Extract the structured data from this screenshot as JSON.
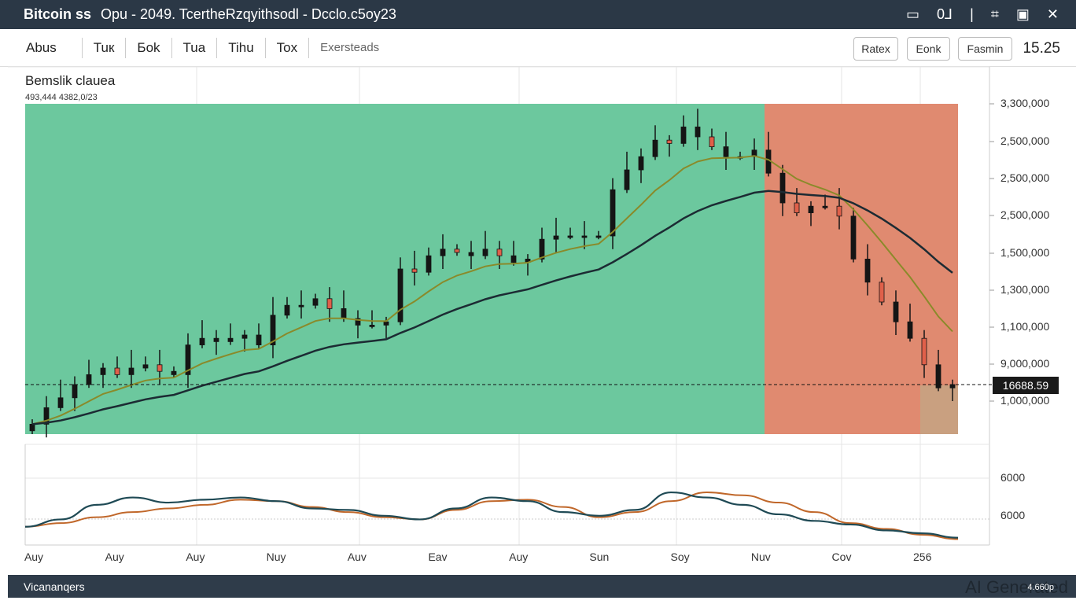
{
  "titlebar": {
    "app": "Bitcoin ss",
    "title": "Opu - 2049. TcertheRzqyithsodl - Dcclo.c5oy23",
    "controls": [
      "minimize-icon",
      "restore-icon",
      "pin-icon",
      "crop-icon",
      "monitor-icon",
      "close-icon"
    ],
    "control_glyphs": [
      "▭",
      "0⅃",
      "|",
      "⌗",
      "▣",
      "✕"
    ]
  },
  "toolbar": {
    "tabs": [
      "Abus",
      "Tuк",
      "Бok",
      "Tua",
      "Tihu",
      "Tox"
    ],
    "extra": "Exersteads",
    "buttons": [
      "Ratex",
      "Eonk",
      "Fasmin"
    ],
    "value": "15.25"
  },
  "chart": {
    "title": "Bemslik clauea",
    "subtitle": "493,444 4382,0/23",
    "price_tag": "16688.59",
    "y_labels": [
      "3,300,000",
      "2,500,000",
      "2,500,000",
      "2,500,000",
      "1,500,000",
      "1,300,000",
      "1,100,000",
      "9,000,000",
      "1,000,000"
    ],
    "osc_labels": [
      "6000",
      "6000"
    ],
    "x_labels": [
      "Auy",
      "Auy",
      "Auy",
      "Nuy",
      "Auv",
      "Eav",
      "Auy",
      "Sun",
      "Soy",
      "Nuv",
      "Cov",
      "256"
    ]
  },
  "footer": {
    "label": "Vicananqers",
    "watermark": "AI Generated",
    "watermark_small": "4.660p"
  },
  "colors": {
    "bull_zone": "#6cc89e",
    "bear_zone": "#e08a70",
    "candle": "#151515",
    "candle_down": "#e0604a",
    "ma_fast": "#8a8a2a",
    "ma_slow": "#1c2b33",
    "osc_a": "#1f4a55",
    "osc_b": "#c0672a"
  },
  "chart_data": {
    "type": "candlestick",
    "ylim": [
      0,
      100
    ],
    "closes": [
      3,
      8,
      11,
      15,
      18,
      20,
      18,
      20,
      21,
      19,
      18,
      27,
      29,
      28,
      29,
      30,
      27,
      36,
      39,
      39,
      41,
      38,
      35,
      33,
      33,
      34,
      50,
      49,
      54,
      56,
      55,
      54,
      56,
      54,
      52,
      53,
      59,
      60,
      60,
      60,
      60,
      74,
      80,
      84,
      89,
      88,
      93,
      90,
      87,
      84,
      84,
      86,
      79,
      70,
      67,
      69,
      69,
      66,
      53,
      46,
      40,
      34,
      29,
      21,
      14,
      15
    ],
    "bull_zone_end_index": 52,
    "osc_ylim": [
      0,
      100
    ],
    "osc_a": [
      25,
      35,
      55,
      65,
      58,
      62,
      65,
      60,
      50,
      48,
      40,
      35,
      50,
      65,
      60,
      45,
      40,
      48,
      72,
      65,
      55,
      42,
      33,
      28,
      20,
      16,
      10
    ],
    "osc_b": [
      25,
      30,
      38,
      45,
      50,
      55,
      62,
      60,
      52,
      45,
      38,
      35,
      48,
      60,
      62,
      52,
      38,
      45,
      60,
      72,
      68,
      58,
      45,
      30,
      22,
      14,
      8
    ]
  }
}
